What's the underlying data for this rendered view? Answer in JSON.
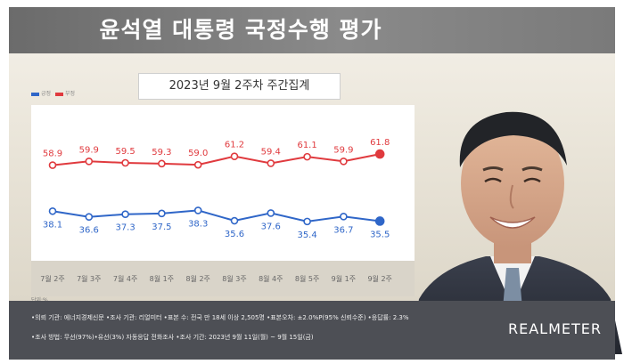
{
  "header": {
    "title": "윤석열 대통령 국정수행 평가"
  },
  "subtitle": "2023년 9월 2주차 주간집계",
  "legend": {
    "items": [
      {
        "label": "긍정",
        "color": "#2f66c8"
      },
      {
        "label": "부정",
        "color": "#e03a3e"
      }
    ]
  },
  "unit_note": "단위:%",
  "footer": {
    "line1": "•의뢰 기관: 에너지경제신문  •조사 기관: 리얼미터  •표본 수: 전국 만 18세 이상 2,505명  •표본오차: ±2.0%P(95% 신뢰수준)  •응답률: 2.3%",
    "line2": "•조사 방법: 무선(97%)•유선(3%) 자동응답 전화조사  •조사 기간: 2023년 9월 11일(월) ~ 9월 15일(금)",
    "brand": "REALMETER"
  },
  "chart_data": {
    "type": "line",
    "categories": [
      "7월 2주",
      "7월 3주",
      "7월 4주",
      "8월 1주",
      "8월 2주",
      "8월 3주",
      "8월 4주",
      "8월 5주",
      "9월 1주",
      "9월 2주"
    ],
    "series": [
      {
        "name": "부정",
        "color": "#e03a3e",
        "values": [
          58.9,
          59.9,
          59.5,
          59.3,
          59.0,
          61.2,
          59.4,
          61.1,
          59.9,
          61.8
        ]
      },
      {
        "name": "긍정",
        "color": "#2f66c8",
        "values": [
          38.1,
          36.6,
          37.3,
          37.5,
          38.3,
          35.6,
          37.6,
          35.4,
          36.7,
          35.5
        ]
      }
    ],
    "title": "윤석열 대통령 국정수행 평가",
    "subtitle": "2023년 9월 2주차 주간집계",
    "grid": false,
    "legend_position": "top-left"
  }
}
